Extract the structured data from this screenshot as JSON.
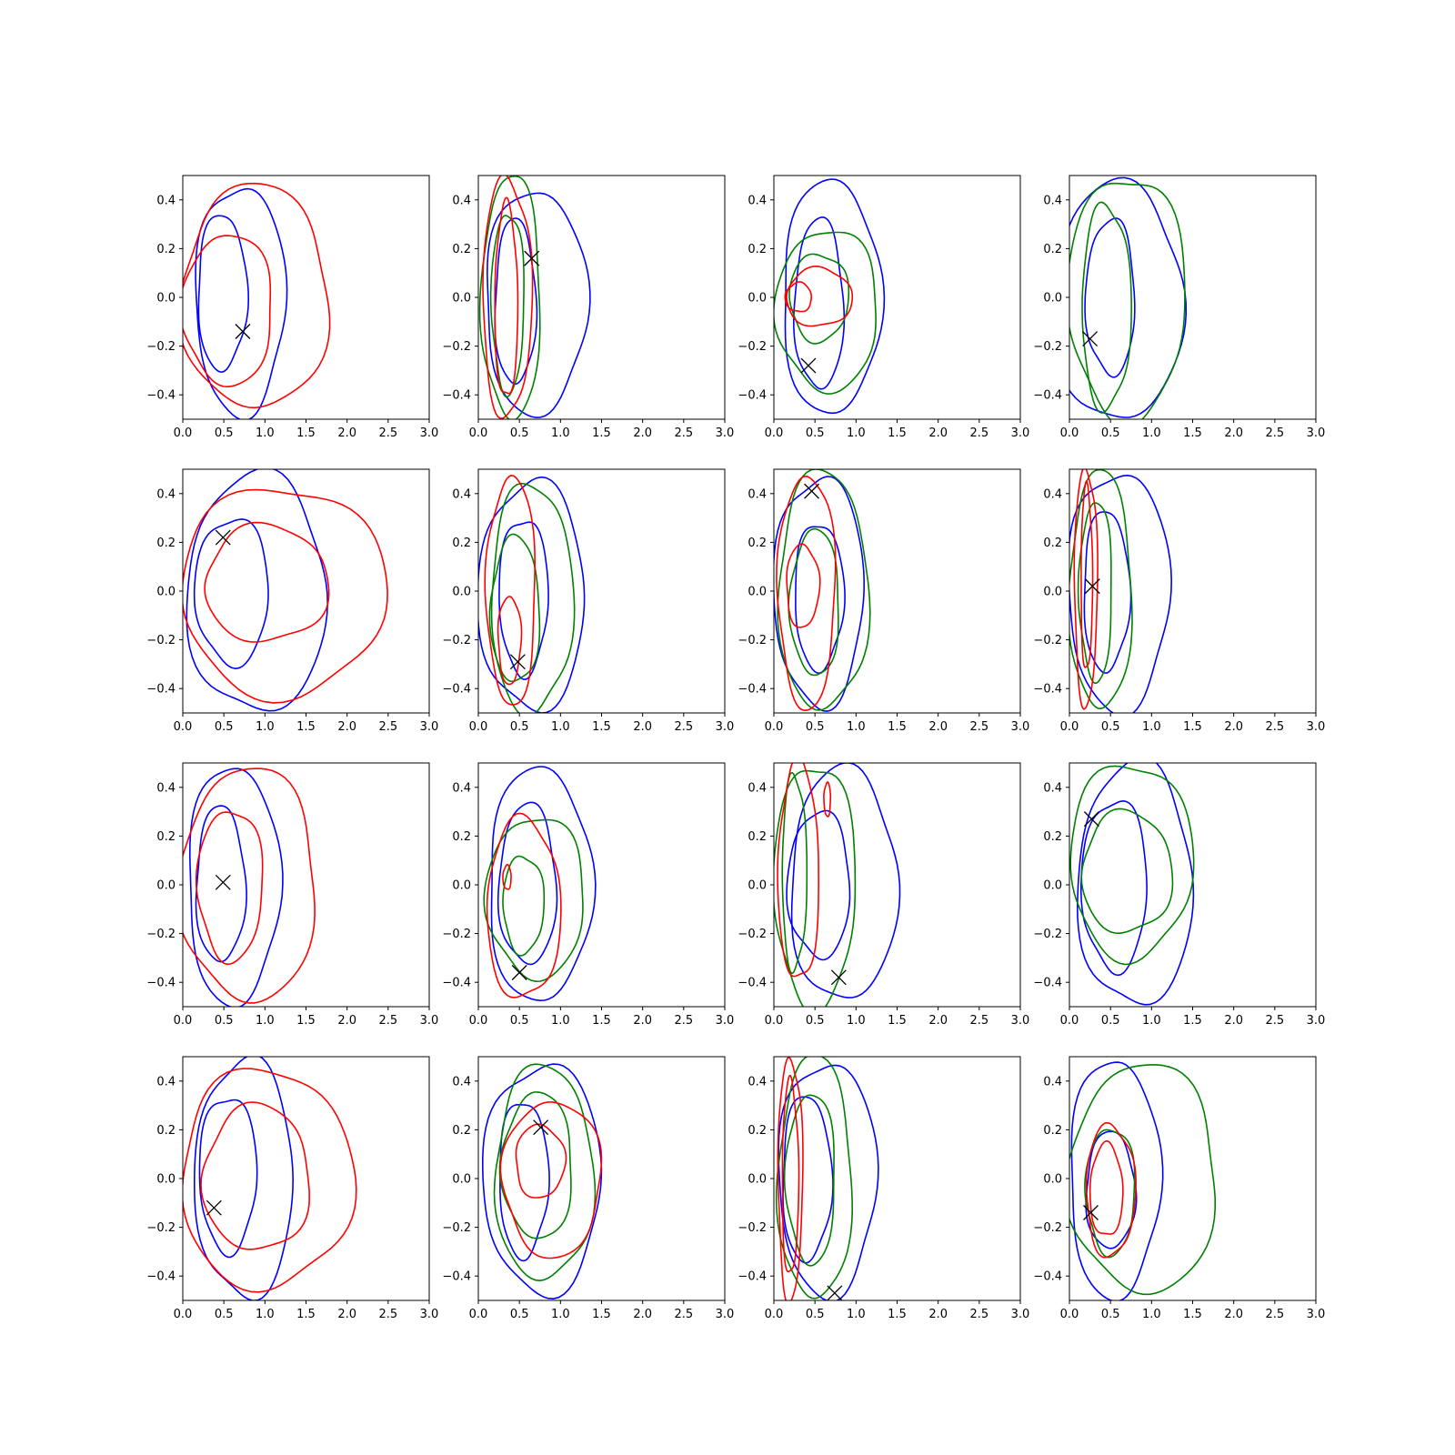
{
  "colors": {
    "blue": "#0000ff",
    "red": "#ff0000",
    "green": "#008000",
    "marker": "#000000"
  },
  "chart_data": {
    "type": "contour",
    "xlim": [
      0,
      3
    ],
    "ylim": [
      -0.5,
      0.5
    ],
    "xticks": [
      0.0,
      0.5,
      1.0,
      1.5,
      2.0,
      2.5,
      3.0
    ],
    "yticks": [
      -0.4,
      -0.2,
      0.0,
      0.2,
      0.4
    ],
    "xtick_labels": [
      "0.0",
      "0.5",
      "1.0",
      "1.5",
      "2.0",
      "2.5",
      "3.0"
    ],
    "ytick_labels": [
      "−0.4",
      "−0.2",
      "0.0",
      "0.2",
      "0.4"
    ],
    "grid": false,
    "panels": [
      {
        "marker": [
          0.73,
          -0.14
        ],
        "contours": [
          {
            "color": "blue",
            "cx": 0.7,
            "cy": -0.01,
            "rx": 0.55,
            "ry": 0.47
          },
          {
            "color": "blue",
            "cx": 0.48,
            "cy": 0.02,
            "rx": 0.3,
            "ry": 0.32
          },
          {
            "color": "red",
            "cx": 0.88,
            "cy": 0.0,
            "rx": 0.9,
            "ry": 0.46
          },
          {
            "color": "red",
            "cx": 0.55,
            "cy": -0.05,
            "rx": 0.55,
            "ry": 0.31
          }
        ]
      },
      {
        "marker": [
          0.65,
          0.16
        ],
        "contours": [
          {
            "color": "blue",
            "cx": 0.7,
            "cy": -0.02,
            "rx": 0.62,
            "ry": 0.46
          },
          {
            "color": "blue",
            "cx": 0.45,
            "cy": -0.02,
            "rx": 0.25,
            "ry": 0.34
          },
          {
            "color": "green",
            "cx": 0.4,
            "cy": 0.0,
            "rx": 0.36,
            "ry": 0.5
          },
          {
            "color": "green",
            "cx": 0.36,
            "cy": -0.02,
            "rx": 0.2,
            "ry": 0.37
          },
          {
            "color": "red",
            "cx": 0.35,
            "cy": 0.0,
            "rx": 0.3,
            "ry": 0.49
          },
          {
            "color": "red",
            "cx": 0.34,
            "cy": -0.02,
            "rx": 0.14,
            "ry": 0.4
          }
        ]
      },
      {
        "marker": [
          0.42,
          -0.28
        ],
        "contours": [
          {
            "color": "blue",
            "cx": 0.7,
            "cy": 0.0,
            "rx": 0.6,
            "ry": 0.48
          },
          {
            "color": "blue",
            "cx": 0.55,
            "cy": -0.03,
            "rx": 0.3,
            "ry": 0.35
          },
          {
            "color": "green",
            "cx": 0.65,
            "cy": -0.05,
            "rx": 0.62,
            "ry": 0.33
          },
          {
            "color": "green",
            "cx": 0.55,
            "cy": 0.0,
            "rx": 0.36,
            "ry": 0.18
          },
          {
            "color": "red",
            "cx": 0.55,
            "cy": 0.0,
            "rx": 0.4,
            "ry": 0.12
          },
          {
            "color": "red",
            "cx": 0.3,
            "cy": 0.0,
            "rx": 0.16,
            "ry": 0.06
          }
        ]
      },
      {
        "marker": [
          0.25,
          -0.17
        ],
        "contours": [
          {
            "color": "blue",
            "cx": 0.6,
            "cy": -0.02,
            "rx": 0.78,
            "ry": 0.49
          },
          {
            "color": "blue",
            "cx": 0.5,
            "cy": 0.0,
            "rx": 0.3,
            "ry": 0.32
          },
          {
            "color": "green",
            "cx": 0.7,
            "cy": 0.0,
            "rx": 0.72,
            "ry": 0.5
          },
          {
            "color": "green",
            "cx": 0.45,
            "cy": -0.04,
            "rx": 0.3,
            "ry": 0.42
          }
        ]
      },
      {
        "marker": [
          0.49,
          0.22
        ],
        "contours": [
          {
            "color": "blue",
            "cx": 0.9,
            "cy": -0.01,
            "rx": 0.85,
            "ry": 0.49
          },
          {
            "color": "blue",
            "cx": 0.6,
            "cy": 0.0,
            "rx": 0.45,
            "ry": 0.3
          },
          {
            "color": "red",
            "cx": 1.22,
            "cy": 0.0,
            "rx": 1.25,
            "ry": 0.43
          },
          {
            "color": "red",
            "cx": 1.02,
            "cy": 0.03,
            "rx": 0.75,
            "ry": 0.24
          }
        ]
      },
      {
        "marker": [
          0.48,
          -0.29
        ],
        "contours": [
          {
            "color": "blue",
            "cx": 0.65,
            "cy": -0.02,
            "rx": 0.65,
            "ry": 0.47
          },
          {
            "color": "blue",
            "cx": 0.55,
            "cy": -0.02,
            "rx": 0.3,
            "ry": 0.32
          },
          {
            "color": "green",
            "cx": 0.65,
            "cy": -0.03,
            "rx": 0.5,
            "ry": 0.47
          },
          {
            "color": "green",
            "cx": 0.45,
            "cy": -0.08,
            "rx": 0.3,
            "ry": 0.3
          },
          {
            "color": "red",
            "cx": 0.4,
            "cy": 0.0,
            "rx": 0.3,
            "ry": 0.47
          },
          {
            "color": "red",
            "cx": 0.38,
            "cy": -0.2,
            "rx": 0.14,
            "ry": 0.18
          }
        ]
      },
      {
        "marker": [
          0.46,
          0.41
        ],
        "contours": [
          {
            "color": "blue",
            "cx": 0.55,
            "cy": 0.0,
            "rx": 0.55,
            "ry": 0.47
          },
          {
            "color": "blue",
            "cx": 0.55,
            "cy": -0.02,
            "rx": 0.3,
            "ry": 0.3
          },
          {
            "color": "green",
            "cx": 0.6,
            "cy": 0.0,
            "rx": 0.55,
            "ry": 0.49
          },
          {
            "color": "green",
            "cx": 0.5,
            "cy": -0.05,
            "rx": 0.3,
            "ry": 0.3
          },
          {
            "color": "red",
            "cx": 0.4,
            "cy": 0.0,
            "rx": 0.35,
            "ry": 0.48
          },
          {
            "color": "red",
            "cx": 0.35,
            "cy": 0.02,
            "rx": 0.2,
            "ry": 0.17
          }
        ]
      },
      {
        "marker": [
          0.28,
          0.02
        ],
        "contours": [
          {
            "color": "blue",
            "cx": 0.6,
            "cy": 0.0,
            "rx": 0.62,
            "ry": 0.49
          },
          {
            "color": "blue",
            "cx": 0.45,
            "cy": 0.0,
            "rx": 0.28,
            "ry": 0.33
          },
          {
            "color": "green",
            "cx": 0.38,
            "cy": 0.0,
            "rx": 0.38,
            "ry": 0.49
          },
          {
            "color": "green",
            "cx": 0.32,
            "cy": 0.0,
            "rx": 0.2,
            "ry": 0.37
          },
          {
            "color": "red",
            "cx": 0.2,
            "cy": 0.02,
            "rx": 0.14,
            "ry": 0.49
          },
          {
            "color": "red",
            "cx": 0.21,
            "cy": 0.05,
            "rx": 0.07,
            "ry": 0.38
          }
        ]
      },
      {
        "marker": [
          0.49,
          0.01
        ],
        "contours": [
          {
            "color": "blue",
            "cx": 0.62,
            "cy": 0.0,
            "rx": 0.56,
            "ry": 0.49
          },
          {
            "color": "blue",
            "cx": 0.46,
            "cy": 0.0,
            "rx": 0.3,
            "ry": 0.32
          },
          {
            "color": "red",
            "cx": 0.8,
            "cy": 0.0,
            "rx": 0.83,
            "ry": 0.48
          },
          {
            "color": "red",
            "cx": 0.58,
            "cy": 0.0,
            "rx": 0.4,
            "ry": 0.31
          }
        ]
      },
      {
        "marker": [
          0.5,
          -0.36
        ],
        "contours": [
          {
            "color": "blue",
            "cx": 0.75,
            "cy": 0.0,
            "rx": 0.63,
            "ry": 0.48
          },
          {
            "color": "blue",
            "cx": 0.6,
            "cy": 0.0,
            "rx": 0.35,
            "ry": 0.33
          },
          {
            "color": "green",
            "cx": 0.7,
            "cy": -0.05,
            "rx": 0.6,
            "ry": 0.33
          },
          {
            "color": "green",
            "cx": 0.55,
            "cy": -0.08,
            "rx": 0.25,
            "ry": 0.2
          },
          {
            "color": "red",
            "cx": 0.55,
            "cy": -0.1,
            "rx": 0.45,
            "ry": 0.37
          },
          {
            "color": "red",
            "cx": 0.35,
            "cy": 0.03,
            "rx": 0.05,
            "ry": 0.05
          }
        ]
      },
      {
        "marker": [
          0.79,
          -0.38
        ],
        "contours": [
          {
            "color": "blue",
            "cx": 0.85,
            "cy": 0.0,
            "rx": 0.65,
            "ry": 0.48
          },
          {
            "color": "blue",
            "cx": 0.55,
            "cy": 0.0,
            "rx": 0.38,
            "ry": 0.3
          },
          {
            "color": "green",
            "cx": 0.5,
            "cy": 0.0,
            "rx": 0.5,
            "ry": 0.5
          },
          {
            "color": "green",
            "cx": 0.25,
            "cy": 0.05,
            "rx": 0.15,
            "ry": 0.4
          },
          {
            "color": "red",
            "cx": 0.3,
            "cy": 0.05,
            "rx": 0.25,
            "ry": 0.45
          },
          {
            "color": "red",
            "cx": 0.65,
            "cy": 0.35,
            "rx": 0.04,
            "ry": 0.07
          }
        ]
      },
      {
        "marker": [
          0.27,
          0.27
        ],
        "contours": [
          {
            "color": "blue",
            "cx": 0.8,
            "cy": 0.0,
            "rx": 0.7,
            "ry": 0.5
          },
          {
            "color": "blue",
            "cx": 0.55,
            "cy": 0.0,
            "rx": 0.4,
            "ry": 0.35
          },
          {
            "color": "green",
            "cx": 0.75,
            "cy": 0.1,
            "rx": 0.75,
            "ry": 0.4
          },
          {
            "color": "green",
            "cx": 0.7,
            "cy": 0.05,
            "rx": 0.55,
            "ry": 0.25
          }
        ]
      },
      {
        "marker": [
          0.38,
          -0.12
        ],
        "contours": [
          {
            "color": "blue",
            "cx": 0.75,
            "cy": 0.0,
            "rx": 0.6,
            "ry": 0.49
          },
          {
            "color": "blue",
            "cx": 0.55,
            "cy": 0.02,
            "rx": 0.35,
            "ry": 0.32
          },
          {
            "color": "red",
            "cx": 1.02,
            "cy": 0.0,
            "rx": 1.05,
            "ry": 0.45
          },
          {
            "color": "red",
            "cx": 0.9,
            "cy": 0.0,
            "rx": 0.65,
            "ry": 0.3
          }
        ]
      },
      {
        "marker": [
          0.76,
          0.21
        ],
        "contours": [
          {
            "color": "blue",
            "cx": 0.78,
            "cy": 0.0,
            "rx": 0.72,
            "ry": 0.47
          },
          {
            "color": "blue",
            "cx": 0.55,
            "cy": 0.0,
            "rx": 0.3,
            "ry": 0.32
          },
          {
            "color": "green",
            "cx": 0.8,
            "cy": 0.02,
            "rx": 0.6,
            "ry": 0.44
          },
          {
            "color": "green",
            "cx": 0.72,
            "cy": 0.05,
            "rx": 0.43,
            "ry": 0.3
          },
          {
            "color": "red",
            "cx": 0.9,
            "cy": 0.0,
            "rx": 0.6,
            "ry": 0.32
          },
          {
            "color": "red",
            "cx": 0.75,
            "cy": 0.07,
            "rx": 0.3,
            "ry": 0.15
          }
        ]
      },
      {
        "marker": [
          0.74,
          -0.47
        ],
        "contours": [
          {
            "color": "blue",
            "cx": 0.65,
            "cy": 0.0,
            "rx": 0.6,
            "ry": 0.48
          },
          {
            "color": "blue",
            "cx": 0.4,
            "cy": 0.0,
            "rx": 0.3,
            "ry": 0.34
          },
          {
            "color": "green",
            "cx": 0.5,
            "cy": 0.0,
            "rx": 0.45,
            "ry": 0.5
          },
          {
            "color": "green",
            "cx": 0.45,
            "cy": 0.0,
            "rx": 0.3,
            "ry": 0.35
          },
          {
            "color": "red",
            "cx": 0.2,
            "cy": 0.0,
            "rx": 0.15,
            "ry": 0.5
          },
          {
            "color": "red",
            "cx": 0.2,
            "cy": 0.0,
            "rx": 0.1,
            "ry": 0.4
          }
        ]
      },
      {
        "marker": [
          0.26,
          -0.14
        ],
        "contours": [
          {
            "color": "blue",
            "cx": 0.55,
            "cy": 0.0,
            "rx": 0.55,
            "ry": 0.49
          },
          {
            "color": "blue",
            "cx": 0.5,
            "cy": -0.05,
            "rx": 0.3,
            "ry": 0.24
          },
          {
            "color": "green",
            "cx": 0.9,
            "cy": 0.0,
            "rx": 0.9,
            "ry": 0.47
          },
          {
            "color": "green",
            "cx": 0.5,
            "cy": -0.05,
            "rx": 0.3,
            "ry": 0.26
          },
          {
            "color": "red",
            "cx": 0.5,
            "cy": -0.05,
            "rx": 0.3,
            "ry": 0.27
          },
          {
            "color": "red",
            "cx": 0.45,
            "cy": -0.05,
            "rx": 0.2,
            "ry": 0.19
          }
        ]
      }
    ]
  }
}
